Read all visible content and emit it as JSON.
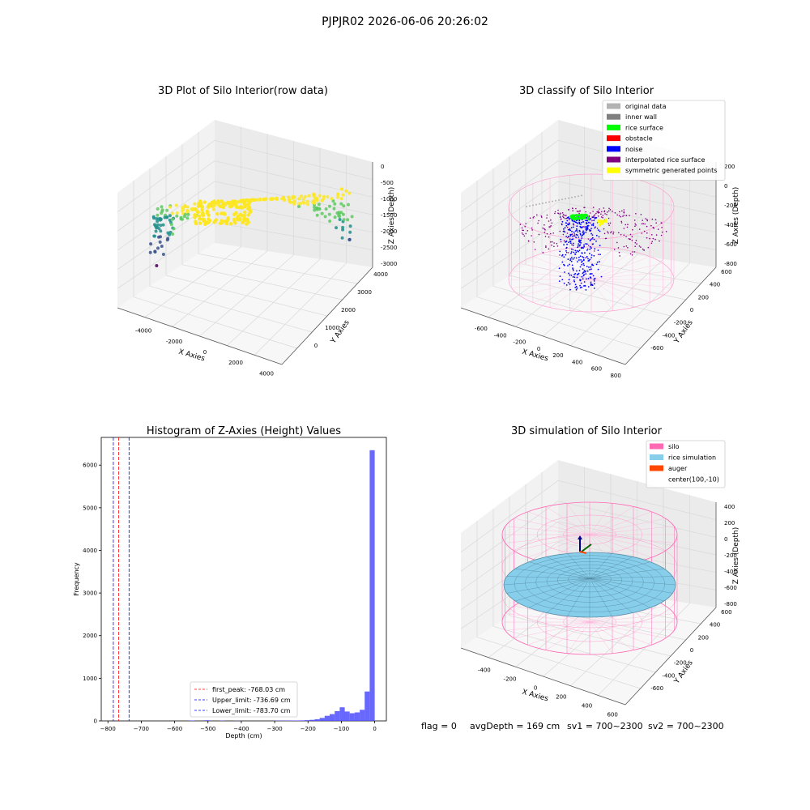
{
  "figure": {
    "suptitle": "PJPJR02 2026-06-06 20:26:02",
    "footer": {
      "flag": "flag = 0",
      "avgdepth": "avgDepth = 169 cm",
      "sv1": "sv1 = 700~2300",
      "sv2": "sv2 = 700~2300"
    }
  },
  "chart_data": [
    {
      "type": "scatter",
      "projection": "3d",
      "title": "3D Plot of Silo Interior(row data)",
      "xlabel": "X Axies",
      "ylabel": "Y Axies",
      "zlabel": "Z Axies (Depth)",
      "x_ticks": [
        "-4000",
        "-2000",
        "0",
        "2000",
        "4000"
      ],
      "y_ticks": [
        "0",
        "1000",
        "2000",
        "3000",
        "4000"
      ],
      "z_ticks": [
        "0",
        "-500",
        "-1000",
        "-1500",
        "-2000",
        "-2500",
        "-3000"
      ],
      "colormap": [
        "#440154",
        "#3b528b",
        "#21918c",
        "#5ec962",
        "#fde725"
      ],
      "grid": true
    },
    {
      "type": "scatter",
      "projection": "3d",
      "title": "3D classify of Silo Interior",
      "xlabel": "X Axies",
      "ylabel": "Y Axies",
      "zlabel": "Z Axies (Depth)",
      "x_ticks": [
        "-600",
        "-400",
        "-200",
        "0",
        "200",
        "400",
        "600",
        "800"
      ],
      "y_ticks": [
        "-600",
        "-400",
        "-200",
        "0",
        "200",
        "400",
        "600"
      ],
      "z_ticks": [
        "200",
        "0",
        "-200",
        "-400",
        "-600",
        "-800"
      ],
      "legend_position": "top-right",
      "legend": [
        {
          "label": "original data",
          "color": "#b3b3b3"
        },
        {
          "label": "inner wall",
          "color": "#808080"
        },
        {
          "label": "rice surface",
          "color": "#00ff00"
        },
        {
          "label": "obstacle",
          "color": "#ff0000"
        },
        {
          "label": "noise",
          "color": "#0000ff"
        },
        {
          "label": "interpolated rice surface",
          "color": "#800080"
        },
        {
          "label": "symmetric generated points",
          "color": "#ffff00"
        }
      ],
      "grid": true
    },
    {
      "type": "bar",
      "subtype": "histogram",
      "title": "Histogram of Z-Axies (Height) Values",
      "xlabel": "Depth (cm)",
      "ylabel": "Frequency",
      "xlim": [
        -820,
        35
      ],
      "ylim": [
        0,
        6650
      ],
      "x_ticks": [
        -800,
        -700,
        -600,
        -500,
        -400,
        -300,
        -200,
        -100,
        0
      ],
      "y_ticks": [
        0,
        1000,
        2000,
        3000,
        4000,
        5000,
        6000
      ],
      "bin_width": 15,
      "bins": [
        [
          -555,
          10
        ],
        [
          -510,
          15
        ],
        [
          -465,
          8
        ],
        [
          -420,
          6
        ],
        [
          -300,
          5
        ],
        [
          -285,
          8
        ],
        [
          -270,
          8
        ],
        [
          -255,
          10
        ],
        [
          -240,
          10
        ],
        [
          -225,
          12
        ],
        [
          -210,
          18
        ],
        [
          -195,
          25
        ],
        [
          -180,
          40
        ],
        [
          -165,
          70
        ],
        [
          -150,
          120
        ],
        [
          -135,
          160
        ],
        [
          -120,
          230
        ],
        [
          -105,
          320
        ],
        [
          -90,
          220
        ],
        [
          -75,
          180
        ],
        [
          -60,
          200
        ],
        [
          -45,
          260
        ],
        [
          -30,
          690
        ],
        [
          -15,
          6350
        ]
      ],
      "bar_color": "#4d4dff",
      "vlines": [
        {
          "label": "first_peak: -768.03 cm",
          "x": -768.03,
          "color": "#ff0000"
        },
        {
          "label": "Upper_limit: -736.69 cm",
          "x": -736.69,
          "color": "#0000ff"
        },
        {
          "label": "Lower_limit: -783.70 cm",
          "x": -783.7,
          "color": "#0000ff"
        }
      ],
      "legend_position": "lower-center",
      "grid": false
    },
    {
      "type": "area",
      "projection": "3d",
      "title": "3D simulation of Silo Interior",
      "xlabel": "X Axies",
      "ylabel": "Y Axies",
      "zlabel": "Z Axies (Depth)",
      "x_ticks": [
        "-400",
        "-200",
        "0",
        "200",
        "400",
        "600"
      ],
      "y_ticks": [
        "-600",
        "-400",
        "-200",
        "0",
        "200",
        "400",
        "600"
      ],
      "z_ticks": [
        "400",
        "200",
        "0",
        "-200",
        "-400",
        "-600",
        "-800"
      ],
      "legend_position": "top-right",
      "legend": [
        {
          "label": "silo",
          "color": "#ff69b4"
        },
        {
          "label": "rice simulation",
          "color": "#87ceeb"
        },
        {
          "label": "auger",
          "color": "#ff4500"
        },
        {
          "label": "center(100,-10)",
          "color": "#ffffff"
        }
      ],
      "grid": true
    }
  ]
}
